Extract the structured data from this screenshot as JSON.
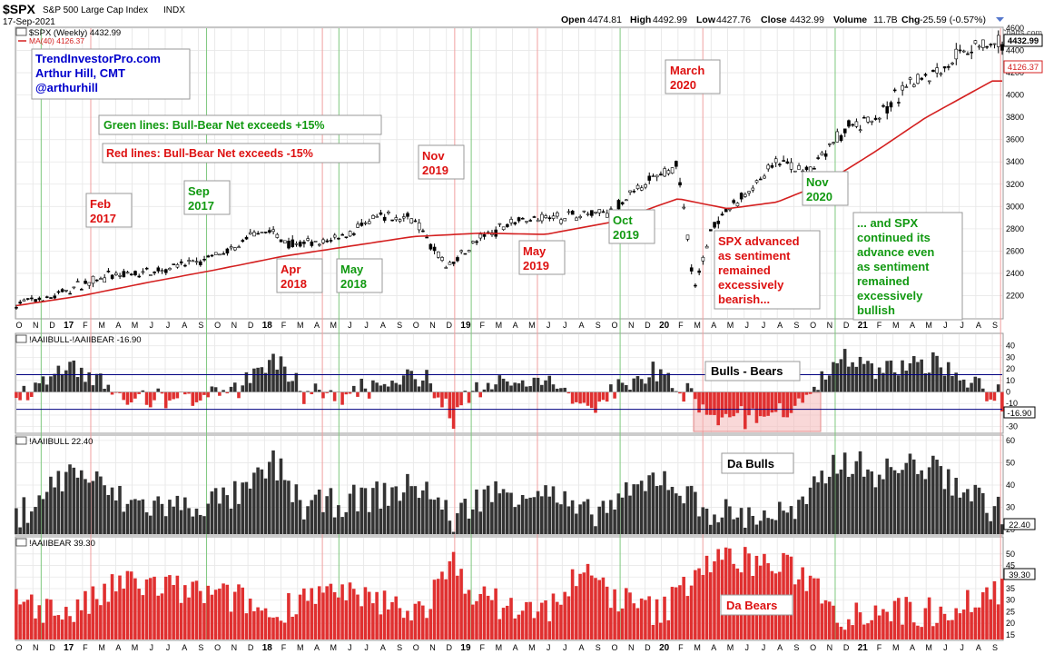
{
  "header": {
    "symbol": "$SPX",
    "name": "S&P 500 Large Cap Index",
    "exchange": "INDX",
    "date": "17-Sep-2021",
    "open_label": "Open",
    "open": "4474.81",
    "high_label": "High",
    "high": "4492.99",
    "low_label": "Low",
    "low": "4427.76",
    "close_label": "Close",
    "close": "4432.99",
    "volume_label": "Volume",
    "volume": "11.7B",
    "chg_label": "Chg",
    "chg": "-25.59 (-0.57%)",
    "watermark": "@ StockCharts.com"
  },
  "colors": {
    "up": "#000000",
    "ma": "#d42020",
    "green_line": "#7ec87e",
    "red_line": "#f0a0a0",
    "bear_bar": "#e03030",
    "bull_bar": "#333333",
    "annot_red": "#dd1111",
    "annot_green": "#119911",
    "annot_blue": "#0000cc"
  },
  "chart_data": [
    {
      "type": "line",
      "panel": "price",
      "title": "$SPX (Weekly) 4432.99",
      "series": [
        {
          "name": "$SPX (Weekly)",
          "last": 4432.99,
          "x": [
            "2016-10",
            "2016-12",
            "2017-02",
            "2017-03",
            "2017-05",
            "2017-07",
            "2017-09",
            "2017-11",
            "2018-01",
            "2018-02",
            "2018-04",
            "2018-06",
            "2018-08",
            "2018-10",
            "2018-12",
            "2019-02",
            "2019-04",
            "2019-06",
            "2019-08",
            "2019-10",
            "2019-12",
            "2020-02",
            "2020-03",
            "2020-04",
            "2020-06",
            "2020-08",
            "2020-10",
            "2020-12",
            "2021-02",
            "2021-04",
            "2021-06",
            "2021-08",
            "2021-09"
          ],
          "values": [
            2130,
            2180,
            2300,
            2360,
            2390,
            2450,
            2500,
            2600,
            2800,
            2700,
            2650,
            2750,
            2900,
            2900,
            2450,
            2700,
            2880,
            2900,
            2920,
            2950,
            3200,
            3380,
            2250,
            2800,
            3100,
            3400,
            3300,
            3690,
            3800,
            4100,
            4250,
            4450,
            4433
          ]
        },
        {
          "name": "MA(40)",
          "last": 4126.37,
          "x": [
            "2016-10",
            "2017-02",
            "2017-06",
            "2017-10",
            "2018-02",
            "2018-06",
            "2018-10",
            "2019-02",
            "2019-06",
            "2019-10",
            "2020-02",
            "2020-05",
            "2020-08",
            "2020-11",
            "2021-02",
            "2021-05",
            "2021-09"
          ],
          "values": [
            2110,
            2200,
            2320,
            2430,
            2550,
            2640,
            2730,
            2760,
            2750,
            2860,
            3070,
            2980,
            3040,
            3220,
            3500,
            3800,
            4126
          ]
        }
      ],
      "ylim": [
        2000,
        4600
      ],
      "yticks": [
        2200,
        2400,
        2600,
        2800,
        3000,
        3200,
        3400,
        3600,
        3800,
        4000,
        4200,
        4400,
        4600
      ],
      "ma_label": "MA(40) 4126.37",
      "last_labels": [
        "4432.99",
        "4126.37"
      ]
    },
    {
      "type": "bar",
      "panel": "net",
      "title": "!AAIIBULL-!AAIIBEAR -16.90",
      "last": -16.9,
      "ylim": [
        -35,
        50
      ],
      "yticks": [
        -30,
        -20,
        -10,
        0,
        10,
        20,
        30,
        40
      ],
      "reference_lines": [
        15,
        -15
      ],
      "last_label": "-16.90"
    },
    {
      "type": "bar",
      "panel": "bulls",
      "title": "!AAIIBULL 22.40",
      "last": 22.4,
      "ylim": [
        18,
        62
      ],
      "yticks": [
        20,
        30,
        40,
        50,
        60
      ],
      "last_label": "22.40"
    },
    {
      "type": "bar",
      "panel": "bears",
      "title": "!AAIIBEAR 39.30",
      "last": 39.3,
      "ylim": [
        13,
        57
      ],
      "yticks": [
        15,
        20,
        25,
        30,
        35,
        40,
        45,
        50
      ],
      "last_label": "39.30"
    }
  ],
  "x_axis": {
    "ticks": [
      {
        "label": "O",
        "bold": false
      },
      {
        "label": "N",
        "bold": false
      },
      {
        "label": "D",
        "bold": false
      },
      {
        "label": "17",
        "bold": true
      },
      {
        "label": "F",
        "bold": false
      },
      {
        "label": "M",
        "bold": false
      },
      {
        "label": "A",
        "bold": false
      },
      {
        "label": "M",
        "bold": false
      },
      {
        "label": "J",
        "bold": false
      },
      {
        "label": "J",
        "bold": false
      },
      {
        "label": "A",
        "bold": false
      },
      {
        "label": "S",
        "bold": false
      },
      {
        "label": "O",
        "bold": false
      },
      {
        "label": "N",
        "bold": false
      },
      {
        "label": "D",
        "bold": false
      },
      {
        "label": "18",
        "bold": true
      },
      {
        "label": "F",
        "bold": false
      },
      {
        "label": "M",
        "bold": false
      },
      {
        "label": "A",
        "bold": false
      },
      {
        "label": "M",
        "bold": false
      },
      {
        "label": "J",
        "bold": false
      },
      {
        "label": "J",
        "bold": false
      },
      {
        "label": "A",
        "bold": false
      },
      {
        "label": "S",
        "bold": false
      },
      {
        "label": "O",
        "bold": false
      },
      {
        "label": "N",
        "bold": false
      },
      {
        "label": "D",
        "bold": false
      },
      {
        "label": "19",
        "bold": true
      },
      {
        "label": "F",
        "bold": false
      },
      {
        "label": "M",
        "bold": false
      },
      {
        "label": "A",
        "bold": false
      },
      {
        "label": "M",
        "bold": false
      },
      {
        "label": "J",
        "bold": false
      },
      {
        "label": "J",
        "bold": false
      },
      {
        "label": "A",
        "bold": false
      },
      {
        "label": "S",
        "bold": false
      },
      {
        "label": "O",
        "bold": false
      },
      {
        "label": "N",
        "bold": false
      },
      {
        "label": "D",
        "bold": false
      },
      {
        "label": "20",
        "bold": true
      },
      {
        "label": "F",
        "bold": false
      },
      {
        "label": "M",
        "bold": false
      },
      {
        "label": "A",
        "bold": false
      },
      {
        "label": "M",
        "bold": false
      },
      {
        "label": "J",
        "bold": false
      },
      {
        "label": "J",
        "bold": false
      },
      {
        "label": "A",
        "bold": false
      },
      {
        "label": "S",
        "bold": false
      },
      {
        "label": "O",
        "bold": false
      },
      {
        "label": "N",
        "bold": false
      },
      {
        "label": "D",
        "bold": false
      },
      {
        "label": "21",
        "bold": true
      },
      {
        "label": "F",
        "bold": false
      },
      {
        "label": "M",
        "bold": false
      },
      {
        "label": "A",
        "bold": false
      },
      {
        "label": "M",
        "bold": false
      },
      {
        "label": "J",
        "bold": false
      },
      {
        "label": "J",
        "bold": false
      },
      {
        "label": "A",
        "bold": false
      },
      {
        "label": "S",
        "bold": false
      }
    ]
  },
  "signal_lines": {
    "green": [
      "2016-11",
      "2017-09",
      "2018-05",
      "2019-01",
      "2019-10",
      "2020-11"
    ],
    "red": [
      "2017-02",
      "2018-04",
      "2018-12",
      "2019-05",
      "2020-03",
      "2021-09"
    ]
  },
  "annotations": {
    "credit": [
      "TrendInvestorPro.com",
      "Arthur Hill, CMT",
      "@arthurhill"
    ],
    "green_legend": "Green lines: Bull-Bear Net exceeds +15%",
    "red_legend": "Red lines: Bull-Bear Net exceeds -15%",
    "feb2017": [
      "Feb",
      "2017"
    ],
    "sep2017": [
      "Sep",
      "2017"
    ],
    "apr2018": [
      "Apr",
      "2018"
    ],
    "may2018": [
      "May",
      "2018"
    ],
    "nov2019": [
      "Nov",
      "2019"
    ],
    "may2019": [
      "May",
      "2019"
    ],
    "oct2019": [
      "Oct",
      "2019"
    ],
    "mar2020": [
      "March",
      "2020"
    ],
    "nov2020": [
      "Nov",
      "2020"
    ],
    "spx_bearish": [
      "SPX advanced",
      "as sentiment",
      "remained",
      "excessively",
      "bearish..."
    ],
    "spx_bullish": [
      "... and SPX",
      "continued its",
      "advance even",
      "as sentiment",
      "remained",
      "excessively",
      "bullish"
    ],
    "bulls_bears": "Bulls - Bears",
    "da_bulls": "Da Bulls",
    "da_bears": "Da Bears"
  }
}
